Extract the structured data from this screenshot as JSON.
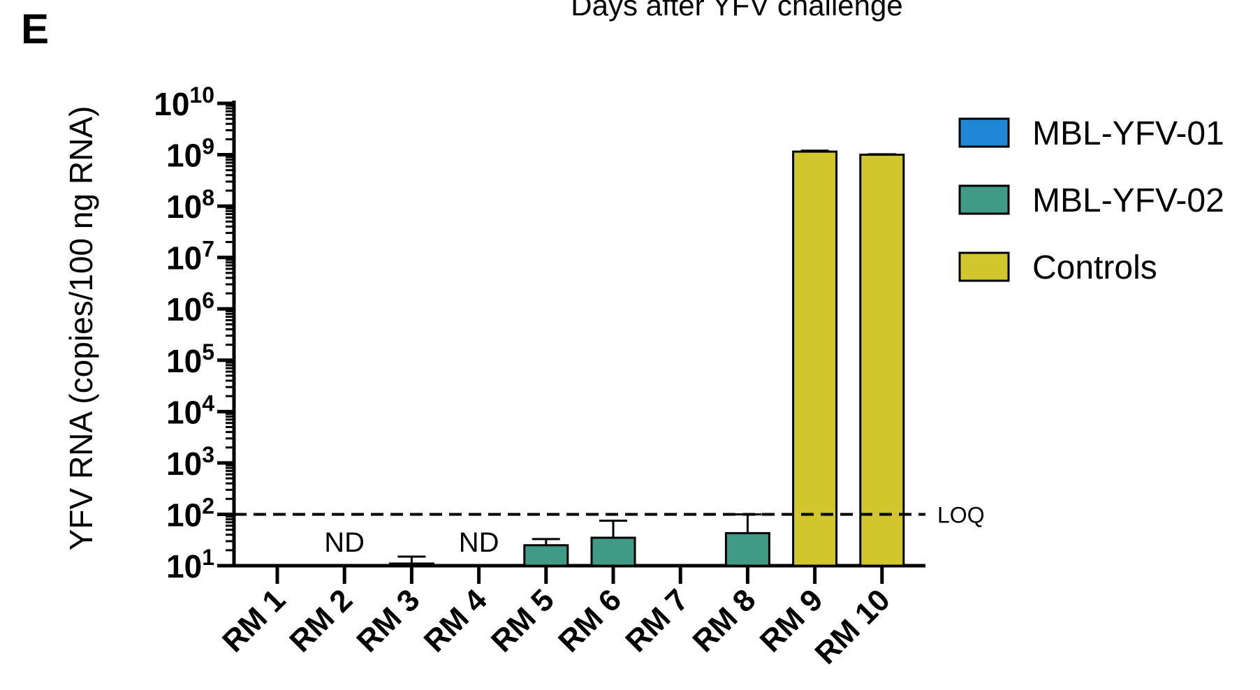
{
  "panel_label": "E",
  "header_text": "Days after YFV challenge",
  "colors": {
    "MBL-YFV-01": "#1e88d6",
    "MBL-YFV-02": "#3f9a86",
    "Controls": "#d2c62f",
    "axis": "#000000"
  },
  "chart_data": {
    "type": "bar",
    "ylabel": "YFV RNA (copies/100 ng RNA)",
    "xlabel": "",
    "yscale": "log",
    "ylim": [
      10,
      10000000000
    ],
    "yticks": [
      {
        "base": "10",
        "exp": "1"
      },
      {
        "base": "10",
        "exp": "2"
      },
      {
        "base": "10",
        "exp": "3"
      },
      {
        "base": "10",
        "exp": "4"
      },
      {
        "base": "10",
        "exp": "5"
      },
      {
        "base": "10",
        "exp": "6"
      },
      {
        "base": "10",
        "exp": "7"
      },
      {
        "base": "10",
        "exp": "8"
      },
      {
        "base": "10",
        "exp": "9"
      },
      {
        "base": "10",
        "exp": "10"
      }
    ],
    "categories": [
      "RM 1",
      "RM 2",
      "RM 3",
      "RM 4",
      "RM 5",
      "RM 6",
      "RM 7",
      "RM 8",
      "RM 9",
      "RM 10"
    ],
    "bars": [
      {
        "category": "RM 1",
        "group": "MBL-YFV-01",
        "value": null,
        "error_upper": null,
        "label": ""
      },
      {
        "category": "RM 2",
        "group": "MBL-YFV-01",
        "value": null,
        "error_upper": null,
        "label": "ND"
      },
      {
        "category": "RM 3",
        "group": "MBL-YFV-01",
        "value": 11,
        "error_upper": 15,
        "label": ""
      },
      {
        "category": "RM 4",
        "group": "MBL-YFV-01",
        "value": null,
        "error_upper": null,
        "label": "ND"
      },
      {
        "category": "RM 5",
        "group": "MBL-YFV-02",
        "value": 25,
        "error_upper": 33,
        "label": ""
      },
      {
        "category": "RM 6",
        "group": "MBL-YFV-02",
        "value": 35,
        "error_upper": 75,
        "label": ""
      },
      {
        "category": "RM 7",
        "group": "MBL-YFV-02",
        "value": null,
        "error_upper": null,
        "label": ""
      },
      {
        "category": "RM 8",
        "group": "MBL-YFV-02",
        "value": 43,
        "error_upper": 100,
        "label": ""
      },
      {
        "category": "RM 9",
        "group": "Controls",
        "value": 1150000000,
        "error_upper": 1200000000,
        "label": ""
      },
      {
        "category": "RM 10",
        "group": "Controls",
        "value": 1000000000,
        "error_upper": 1020000000,
        "label": ""
      }
    ],
    "reference_line": {
      "value": 100,
      "label": "LOQ",
      "style": "dashed"
    },
    "legend": {
      "position": "top-right",
      "entries": [
        "MBL-YFV-01",
        "MBL-YFV-02",
        "Controls"
      ]
    },
    "grid": false
  }
}
